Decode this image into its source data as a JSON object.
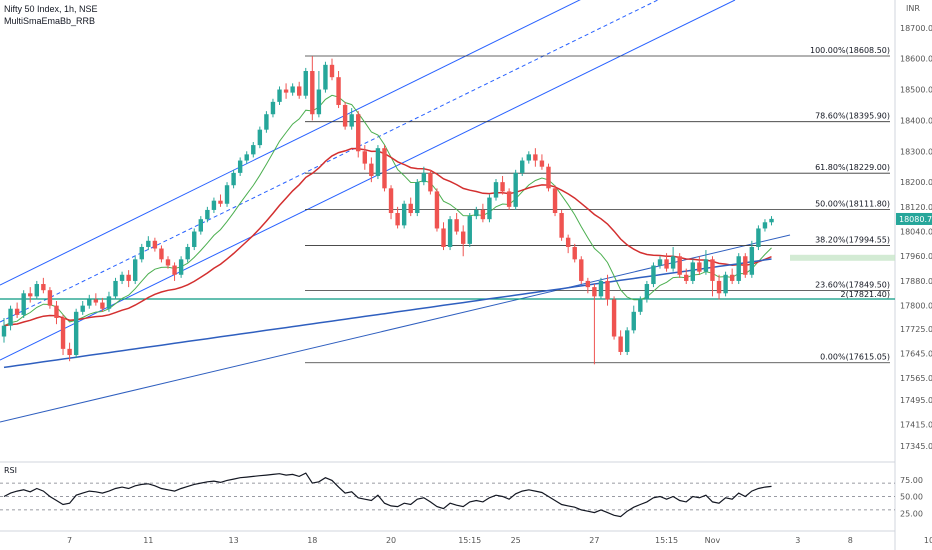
{
  "legend": {
    "symbol_line": "Nifty 50 Index, 1h, NSE",
    "indicator": "MultiSmaEmaBb_RRB"
  },
  "rsi_label": "RSI",
  "currency": "INR",
  "colors": {
    "up": "#26a69a",
    "down": "#ef5350",
    "channel": "#2962ff",
    "sma_blue": "#2f5fbf",
    "ema_red": "#d32f2f",
    "green_ma": "#4caf50",
    "fib": "#333333",
    "teal_line": "#089981",
    "price_badge": "#26a69a"
  },
  "chart_data": {
    "type": "candlestick",
    "ylim": [
      17300,
      18790
    ],
    "y_ticks": [
      "18700.00",
      "18600.00",
      "18500.00",
      "18400.00",
      "18300.00",
      "18200.00",
      "18120.00",
      "18040.00",
      "17960.00",
      "17880.00",
      "17800.00",
      "17725.00",
      "17645.00",
      "17565.00",
      "17495.00",
      "17415.00",
      "17345.00"
    ],
    "y_tick_values": [
      18700,
      18600,
      18500,
      18400,
      18300,
      18200,
      18120,
      18040,
      17960,
      17880,
      17800,
      17725,
      17645,
      17565,
      17495,
      17415,
      17345
    ],
    "x_ticks": [
      {
        "label": "7",
        "i": 10
      },
      {
        "label": "11",
        "i": 22
      },
      {
        "label": "13",
        "i": 35
      },
      {
        "label": "18",
        "i": 47
      },
      {
        "label": "20",
        "i": 59
      },
      {
        "label": "15:15",
        "i": 71
      },
      {
        "label": "25",
        "i": 78
      },
      {
        "label": "27",
        "i": 90
      },
      {
        "label": "15:15",
        "i": 101
      },
      {
        "label": "Nov",
        "i": 108
      },
      {
        "label": "3",
        "i": 121
      },
      {
        "label": "8",
        "i": 129
      },
      {
        "label": "10",
        "i": 141
      }
    ],
    "current_price": "18080.70",
    "current_price_value": 18080.7,
    "horizontal_level": {
      "label": "2(17821.40)",
      "value": 17821.4
    },
    "fib_levels": [
      {
        "label": "100.00%(18608.50)",
        "value": 18608.5
      },
      {
        "label": "78.60%(18395.90)",
        "value": 18395.9
      },
      {
        "label": "61.80%(18229.00)",
        "value": 18229.0
      },
      {
        "label": "50.00%(18111.80)",
        "value": 18111.8
      },
      {
        "label": "38.20%(17994.55)",
        "value": 17994.55
      },
      {
        "label": "23.60%(17849.50)",
        "value": 17849.5
      },
      {
        "label": "0.00%(17615.05)",
        "value": 17615.05
      }
    ],
    "candles": [
      [
        17700,
        17735,
        17680,
        17760
      ],
      [
        17735,
        17790,
        17720,
        17800
      ],
      [
        17790,
        17770,
        17760,
        17810
      ],
      [
        17770,
        17840,
        17760,
        17850
      ],
      [
        17840,
        17830,
        17810,
        17860
      ],
      [
        17830,
        17870,
        17820,
        17880
      ],
      [
        17870,
        17850,
        17840,
        17890
      ],
      [
        17850,
        17800,
        17790,
        17860
      ],
      [
        17800,
        17760,
        17740,
        17815
      ],
      [
        17760,
        17660,
        17640,
        17770
      ],
      [
        17660,
        17640,
        17620,
        17680
      ],
      [
        17640,
        17780,
        17630,
        17790
      ],
      [
        17780,
        17800,
        17770,
        17815
      ],
      [
        17800,
        17820,
        17790,
        17835
      ],
      [
        17820,
        17810,
        17800,
        17840
      ],
      [
        17810,
        17790,
        17780,
        17825
      ],
      [
        17790,
        17830,
        17780,
        17845
      ],
      [
        17830,
        17880,
        17820,
        17890
      ],
      [
        17880,
        17900,
        17870,
        17910
      ],
      [
        17900,
        17880,
        17860,
        17915
      ],
      [
        17880,
        17950,
        17870,
        17960
      ],
      [
        17950,
        17990,
        17940,
        18000
      ],
      [
        17990,
        18010,
        17980,
        18025
      ],
      [
        18010,
        17985,
        17975,
        18020
      ],
      [
        17985,
        17950,
        17940,
        17995
      ],
      [
        17950,
        17930,
        17920,
        17960
      ],
      [
        17930,
        17900,
        17880,
        17940
      ],
      [
        17900,
        17950,
        17890,
        17960
      ],
      [
        17950,
        17990,
        17940,
        18000
      ],
      [
        17990,
        18040,
        17980,
        18050
      ],
      [
        18040,
        18080,
        18030,
        18090
      ],
      [
        18080,
        18110,
        18070,
        18120
      ],
      [
        18110,
        18140,
        18100,
        18150
      ],
      [
        18140,
        18130,
        18120,
        18160
      ],
      [
        18130,
        18190,
        18120,
        18200
      ],
      [
        18190,
        18230,
        18180,
        18240
      ],
      [
        18230,
        18270,
        18220,
        18280
      ],
      [
        18270,
        18290,
        18260,
        18300
      ],
      [
        18290,
        18320,
        18280,
        18330
      ],
      [
        18320,
        18370,
        18310,
        18380
      ],
      [
        18370,
        18420,
        18360,
        18430
      ],
      [
        18420,
        18460,
        18410,
        18470
      ],
      [
        18460,
        18500,
        18450,
        18510
      ],
      [
        18500,
        18490,
        18470,
        18520
      ],
      [
        18490,
        18510,
        18480,
        18520
      ],
      [
        18510,
        18480,
        18470,
        18525
      ],
      [
        18480,
        18560,
        18470,
        18570
      ],
      [
        18560,
        18420,
        18400,
        18608
      ],
      [
        18420,
        18500,
        18410,
        18560
      ],
      [
        18500,
        18580,
        18490,
        18590
      ],
      [
        18580,
        18540,
        18530,
        18600
      ],
      [
        18540,
        18450,
        18440,
        18560
      ],
      [
        18450,
        18380,
        18370,
        18460
      ],
      [
        18380,
        18420,
        18370,
        18440
      ],
      [
        18420,
        18300,
        18280,
        18430
      ],
      [
        18300,
        18260,
        18240,
        18320
      ],
      [
        18260,
        18220,
        18200,
        18280
      ],
      [
        18220,
        18310,
        18210,
        18320
      ],
      [
        18310,
        18180,
        18170,
        18320
      ],
      [
        18180,
        18100,
        18080,
        18190
      ],
      [
        18100,
        18060,
        18050,
        18120
      ],
      [
        18060,
        18130,
        18050,
        18140
      ],
      [
        18130,
        18100,
        18090,
        18150
      ],
      [
        18100,
        18200,
        18090,
        18210
      ],
      [
        18200,
        18230,
        18190,
        18250
      ],
      [
        18230,
        18170,
        18160,
        18240
      ],
      [
        18170,
        18050,
        18040,
        18180
      ],
      [
        18050,
        17990,
        17980,
        18070
      ],
      [
        17990,
        18080,
        17980,
        18090
      ],
      [
        18080,
        18040,
        18030,
        18100
      ],
      [
        18040,
        18000,
        17960,
        18060
      ],
      [
        18000,
        18090,
        17990,
        18100
      ],
      [
        18090,
        18110,
        18080,
        18120
      ],
      [
        18110,
        18080,
        18070,
        18130
      ],
      [
        18080,
        18150,
        18070,
        18160
      ],
      [
        18150,
        18200,
        18140,
        18210
      ],
      [
        18200,
        18170,
        18160,
        18220
      ],
      [
        18170,
        18120,
        18110,
        18180
      ],
      [
        18120,
        18230,
        18110,
        18240
      ],
      [
        18230,
        18270,
        18220,
        18280
      ],
      [
        18270,
        18290,
        18260,
        18300
      ],
      [
        18290,
        18270,
        18250,
        18310
      ],
      [
        18270,
        18250,
        18240,
        18290
      ],
      [
        18250,
        18180,
        18170,
        18260
      ],
      [
        18180,
        18100,
        18090,
        18190
      ],
      [
        18100,
        18020,
        18010,
        18110
      ],
      [
        18020,
        17990,
        17970,
        18030
      ],
      [
        17990,
        17950,
        17940,
        18000
      ],
      [
        17950,
        17880,
        17870,
        17960
      ],
      [
        17880,
        17860,
        17840,
        17890
      ],
      [
        17860,
        17830,
        17610,
        17870
      ],
      [
        17830,
        17880,
        17820,
        17890
      ],
      [
        17880,
        17820,
        17800,
        17900
      ],
      [
        17820,
        17700,
        17690,
        17830
      ],
      [
        17700,
        17650,
        17640,
        17720
      ],
      [
        17650,
        17720,
        17640,
        17730
      ],
      [
        17720,
        17780,
        17710,
        17800
      ],
      [
        17780,
        17820,
        17770,
        17830
      ],
      [
        17820,
        17870,
        17810,
        17880
      ],
      [
        17870,
        17930,
        17860,
        17940
      ],
      [
        17930,
        17950,
        17920,
        17960
      ],
      [
        17950,
        17920,
        17910,
        17970
      ],
      [
        17920,
        17960,
        17910,
        17990
      ],
      [
        17960,
        17900,
        17890,
        17970
      ],
      [
        17900,
        17880,
        17870,
        17920
      ],
      [
        17880,
        17940,
        17870,
        17950
      ],
      [
        17940,
        17910,
        17900,
        17960
      ],
      [
        17910,
        17950,
        17900,
        17980
      ],
      [
        17950,
        17880,
        17830,
        17960
      ],
      [
        17880,
        17840,
        17820,
        17900
      ],
      [
        17840,
        17900,
        17830,
        17910
      ],
      [
        17900,
        17880,
        17870,
        17920
      ],
      [
        17880,
        17960,
        17870,
        17970
      ],
      [
        17960,
        17900,
        17890,
        17970
      ],
      [
        17900,
        17990,
        17890,
        18010
      ],
      [
        17990,
        18050,
        17980,
        18060
      ],
      [
        18050,
        18070,
        18040,
        18080
      ],
      [
        18070,
        18081,
        18060,
        18090
      ]
    ],
    "rsi": [
      50,
      55,
      58,
      60,
      57,
      62,
      58,
      50,
      44,
      38,
      40,
      52,
      55,
      58,
      57,
      55,
      58,
      62,
      64,
      62,
      66,
      68,
      69,
      66,
      62,
      60,
      58,
      62,
      65,
      68,
      70,
      72,
      73,
      71,
      74,
      76,
      78,
      79,
      80,
      81,
      82,
      83,
      84,
      82,
      83,
      80,
      85,
      70,
      72,
      78,
      74,
      64,
      55,
      57,
      48,
      46,
      44,
      52,
      40,
      36,
      35,
      40,
      38,
      46,
      48,
      42,
      35,
      32,
      40,
      37,
      35,
      42,
      44,
      42,
      48,
      52,
      50,
      46,
      54,
      58,
      60,
      58,
      56,
      50,
      44,
      38,
      36,
      34,
      30,
      28,
      26,
      30,
      26,
      22,
      20,
      28,
      34,
      38,
      42,
      48,
      50,
      46,
      50,
      44,
      42,
      50,
      48,
      52,
      42,
      40,
      48,
      46,
      55,
      50,
      58,
      62,
      64,
      65
    ]
  }
}
